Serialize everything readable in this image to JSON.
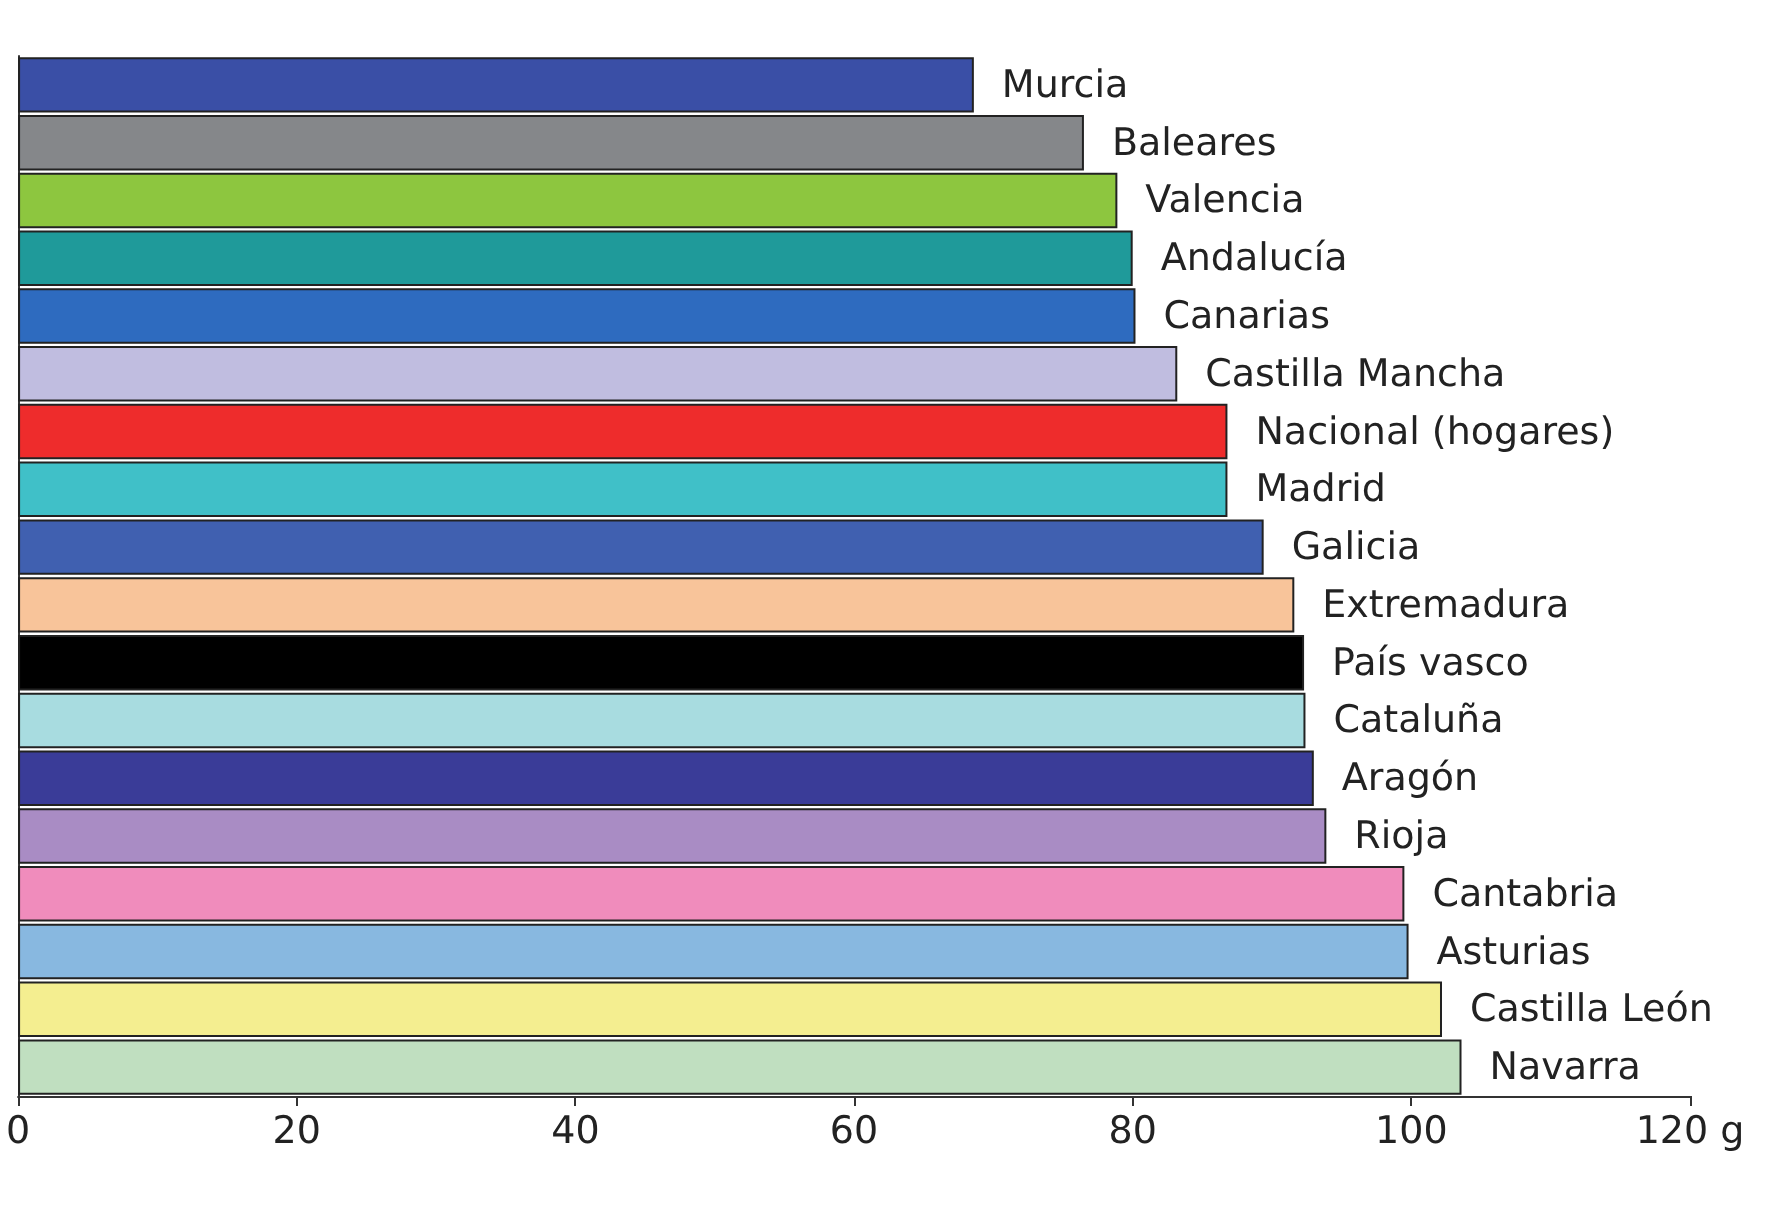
{
  "chart_data": {
    "type": "bar",
    "orientation": "horizontal",
    "categories": [
      "Murcia",
      "Baleares",
      "Valencia",
      "Andalucía",
      "Canarias",
      "Castilla Mancha",
      "Nacional (hogares)",
      "Madrid",
      "Galicia",
      "Extremadura",
      "País vasco",
      "Cataluña",
      "Aragón",
      "Rioja",
      "Cantabria",
      "Asturias",
      "Castilla León",
      "Navarra"
    ],
    "values": [
      68.6,
      76.5,
      78.9,
      80,
      80.2,
      83.2,
      86.8,
      86.8,
      89.4,
      91.6,
      92.3,
      92.4,
      93,
      93.9,
      99.5,
      99.8,
      102.2,
      103.6
    ],
    "colors": [
      "#3a4fa6",
      "#85878a",
      "#8dc63f",
      "#1f9a9a",
      "#2e6bbf",
      "#c0bde0",
      "#ee2c2c",
      "#40c0c8",
      "#4060b0",
      "#f8c49a",
      "#000000",
      "#a8dce0",
      "#3a3c98",
      "#a98cc4",
      "#f08cbc",
      "#88b8e0",
      "#f4ee90",
      "#c0dfc0"
    ],
    "xlim": [
      0,
      120
    ],
    "xticks": [
      0,
      20,
      40,
      60,
      80,
      100,
      {
        "value": 120,
        "label": "120 g"
      }
    ],
    "grid": false
  }
}
